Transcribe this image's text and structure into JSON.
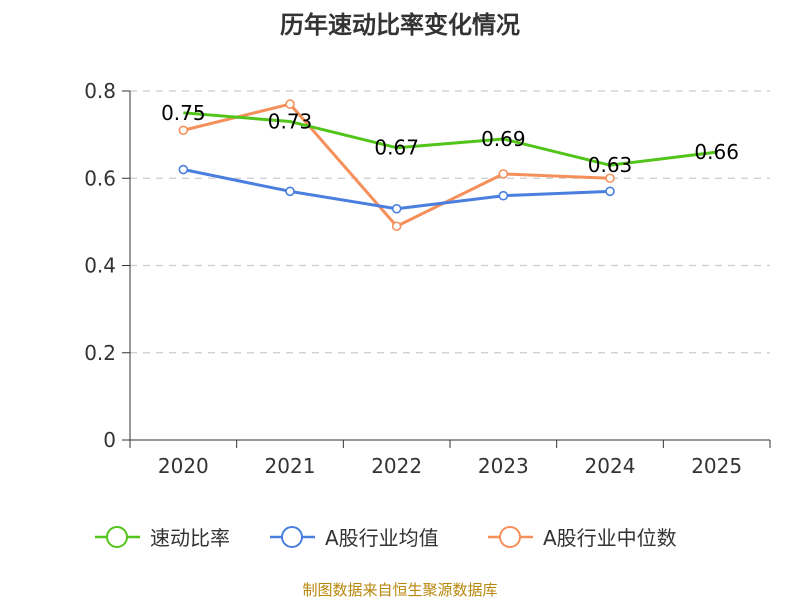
{
  "chart_data": {
    "type": "line",
    "title": "历年速动比率变化情况",
    "categories": [
      "2020",
      "2021",
      "2022",
      "2023",
      "2024",
      "2025"
    ],
    "y_ticks": [
      "0",
      "0.2",
      "0.4",
      "0.6",
      "0.8"
    ],
    "ylim": [
      0,
      0.8
    ],
    "xlabel": "",
    "ylabel": "",
    "grid": true,
    "legend_position": "bottom",
    "series": [
      {
        "name": "速动比率",
        "color": "#52c41a",
        "values": [
          0.75,
          0.73,
          0.67,
          0.69,
          0.63,
          0.66
        ],
        "labels": [
          "0.75",
          "0.73",
          "0.67",
          "0.69",
          "0.63",
          "0.66"
        ],
        "show_markers": false,
        "show_labels": true
      },
      {
        "name": "A股行业均值",
        "color": "#4a7fe0",
        "values": [
          0.62,
          0.57,
          0.53,
          0.56,
          0.57,
          null
        ],
        "show_markers": true,
        "show_labels": false
      },
      {
        "name": "A股行业中位数",
        "color": "#f5905a",
        "values": [
          0.71,
          0.77,
          0.49,
          0.61,
          0.6,
          null
        ],
        "show_markers": true,
        "show_labels": false
      }
    ]
  },
  "source": "制图数据来自恒生聚源数据库"
}
